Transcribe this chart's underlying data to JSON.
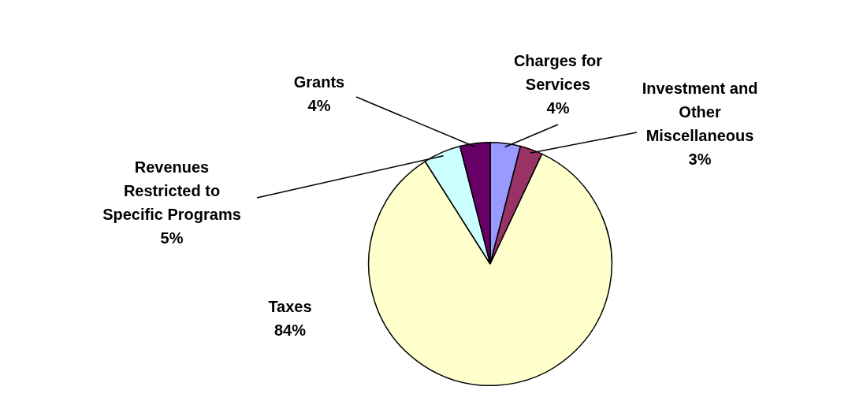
{
  "chart_data": {
    "type": "pie",
    "categories": [
      "Charges for Services",
      "Investment and Other Miscellaneous",
      "Taxes",
      "Revenues Restricted to Specific Programs",
      "Grants"
    ],
    "values": [
      4,
      3,
      84,
      5,
      4
    ],
    "colors": [
      "#9999ff",
      "#993366",
      "#ffffcc",
      "#ccffff",
      "#660066"
    ],
    "value_labels": [
      "4%",
      "3%",
      "84%",
      "5%",
      "4%"
    ],
    "legend": false
  }
}
